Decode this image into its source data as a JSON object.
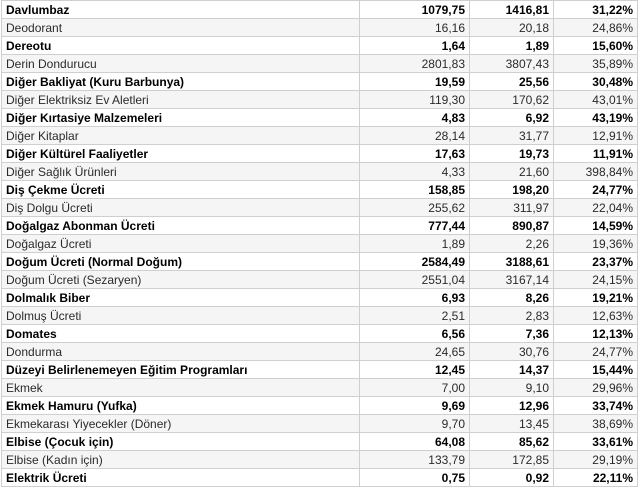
{
  "rows": [
    {
      "name": "Davlumbaz",
      "v1": "1079,75",
      "v2": "1416,81",
      "pct": "31,22%",
      "bold": true
    },
    {
      "name": "Deodorant",
      "v1": "16,16",
      "v2": "20,18",
      "pct": "24,86%",
      "bold": false
    },
    {
      "name": "Dereotu",
      "v1": "1,64",
      "v2": "1,89",
      "pct": "15,60%",
      "bold": true
    },
    {
      "name": "Derin Dondurucu",
      "v1": "2801,83",
      "v2": "3807,43",
      "pct": "35,89%",
      "bold": false
    },
    {
      "name": "Diğer Bakliyat (Kuru Barbunya)",
      "v1": "19,59",
      "v2": "25,56",
      "pct": "30,48%",
      "bold": true
    },
    {
      "name": "Diğer Elektriksiz Ev Aletleri",
      "v1": "119,30",
      "v2": "170,62",
      "pct": "43,01%",
      "bold": false
    },
    {
      "name": "Diğer Kırtasiye Malzemeleri",
      "v1": "4,83",
      "v2": "6,92",
      "pct": "43,19%",
      "bold": true
    },
    {
      "name": "Diğer Kitaplar",
      "v1": "28,14",
      "v2": "31,77",
      "pct": "12,91%",
      "bold": false
    },
    {
      "name": "Diğer Kültürel Faaliyetler",
      "v1": "17,63",
      "v2": "19,73",
      "pct": "11,91%",
      "bold": true
    },
    {
      "name": "Diğer Sağlık Ürünleri",
      "v1": "4,33",
      "v2": "21,60",
      "pct": "398,84%",
      "bold": false
    },
    {
      "name": "Diş Çekme Ücreti",
      "v1": "158,85",
      "v2": "198,20",
      "pct": "24,77%",
      "bold": true
    },
    {
      "name": "Diş Dolgu Ücreti",
      "v1": "255,62",
      "v2": "311,97",
      "pct": "22,04%",
      "bold": false
    },
    {
      "name": "Doğalgaz Abonman Ücreti",
      "v1": "777,44",
      "v2": "890,87",
      "pct": "14,59%",
      "bold": true
    },
    {
      "name": "Doğalgaz Ücreti",
      "v1": "1,89",
      "v2": "2,26",
      "pct": "19,36%",
      "bold": false
    },
    {
      "name": "Doğum Ücreti (Normal Doğum)",
      "v1": "2584,49",
      "v2": "3188,61",
      "pct": "23,37%",
      "bold": true
    },
    {
      "name": "Doğum Ücreti (Sezaryen)",
      "v1": "2551,04",
      "v2": "3167,14",
      "pct": "24,15%",
      "bold": false
    },
    {
      "name": "Dolmalık Biber",
      "v1": "6,93",
      "v2": "8,26",
      "pct": "19,21%",
      "bold": true
    },
    {
      "name": "Dolmuş Ücreti",
      "v1": "2,51",
      "v2": "2,83",
      "pct": "12,63%",
      "bold": false
    },
    {
      "name": "Domates",
      "v1": "6,56",
      "v2": "7,36",
      "pct": "12,13%",
      "bold": true
    },
    {
      "name": "Dondurma",
      "v1": "24,65",
      "v2": "30,76",
      "pct": "24,77%",
      "bold": false
    },
    {
      "name": "Düzeyi Belirlenemeyen Eğitim Programları",
      "v1": "12,45",
      "v2": "14,37",
      "pct": "15,44%",
      "bold": true
    },
    {
      "name": "Ekmek",
      "v1": "7,00",
      "v2": "9,10",
      "pct": "29,96%",
      "bold": false
    },
    {
      "name": "Ekmek Hamuru (Yufka)",
      "v1": "9,69",
      "v2": "12,96",
      "pct": "33,74%",
      "bold": true
    },
    {
      "name": "Ekmekarası Yiyecekler (Döner)",
      "v1": "9,70",
      "v2": "13,45",
      "pct": "38,69%",
      "bold": false
    },
    {
      "name": "Elbise (Çocuk için)",
      "v1": "64,08",
      "v2": "85,62",
      "pct": "33,61%",
      "bold": true
    },
    {
      "name": "Elbise (Kadın için)",
      "v1": "133,79",
      "v2": "172,85",
      "pct": "29,19%",
      "bold": false
    },
    {
      "name": "Elektrik Ücreti",
      "v1": "0,75",
      "v2": "0,92",
      "pct": "22,11%",
      "bold": true
    }
  ]
}
